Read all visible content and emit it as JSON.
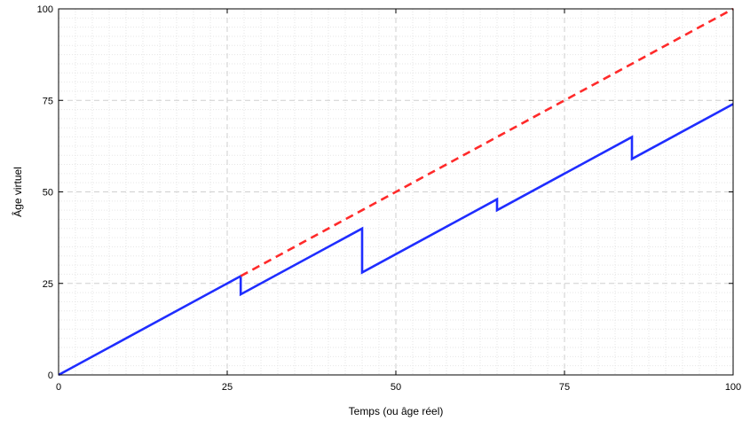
{
  "chart_data": {
    "type": "line",
    "xlabel": "Temps (ou âge réel)",
    "ylabel": "Âge virtuel",
    "xlim": [
      0,
      100
    ],
    "ylim": [
      0,
      100
    ],
    "xticks": [
      0,
      25,
      50,
      75,
      100
    ],
    "yticks": [
      0,
      25,
      50,
      75,
      100
    ],
    "xtick_labels": [
      "0",
      "25",
      "50",
      "75",
      "100"
    ],
    "ytick_labels": [
      "0",
      "25",
      "50",
      "75",
      "100"
    ],
    "grid": true,
    "minor_grid": true,
    "series": [
      {
        "style": "solid",
        "color": "#1f2dff",
        "x": [
          0,
          27,
          27,
          45,
          45,
          65,
          65,
          85,
          85,
          100
        ],
        "y": [
          0,
          27,
          22,
          40,
          28,
          48,
          45,
          65,
          59,
          74
        ]
      },
      {
        "style": "dashed",
        "color": "#ff2a2a",
        "x": [
          27,
          100
        ],
        "y": [
          27,
          100
        ]
      }
    ]
  }
}
